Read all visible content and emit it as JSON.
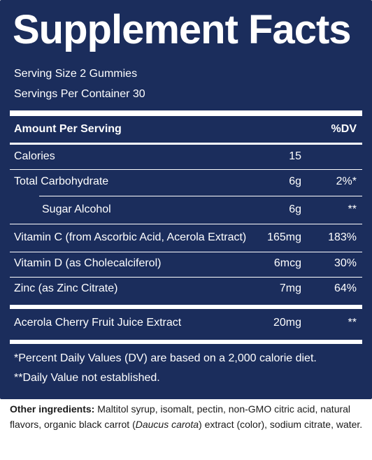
{
  "title": "Supplement Facts",
  "serving_size": "Serving Size 2 Gummies",
  "servings_per_container": "Servings Per Container 30",
  "header": {
    "amount_per_serving": "Amount Per Serving",
    "dv": "%DV"
  },
  "rows": [
    {
      "name": "Calories",
      "amount": "15",
      "dv": ""
    },
    {
      "name": "Total Carbohydrate",
      "amount": "6g",
      "dv": "2%*"
    },
    {
      "name": "Sugar Alcohol",
      "amount": "6g",
      "dv": "**"
    },
    {
      "name": "Vitamin C (from Ascorbic Acid, Acerola Extract)",
      "amount": "165mg",
      "dv": "183%"
    },
    {
      "name": "Vitamin D (as Cholecalciferol)",
      "amount": "6mcg",
      "dv": "30%"
    },
    {
      "name": "Zinc (as Zinc Citrate)",
      "amount": "7mg",
      "dv": "64%"
    },
    {
      "name": "Acerola Cherry Fruit Juice Extract",
      "amount": "20mg",
      "dv": "**"
    }
  ],
  "footnotes": {
    "dv_note": "*Percent Daily Values (DV) are based on a 2,000 calorie diet.",
    "not_established": "**Daily Value not established."
  },
  "ingredients": {
    "label": "Other ingredients:",
    "text_before": " Maltitol syrup, isomalt, pectin, non-GMO citric acid, natural flavors, organic black carrot (",
    "italic": "Daucus carota",
    "text_after": ") extract (color), sodium citrate, water."
  },
  "colors": {
    "panel_background": "#1b2d5c",
    "text_on_panel": "#ffffff",
    "ingredients_text": "#1a1a1a"
  }
}
